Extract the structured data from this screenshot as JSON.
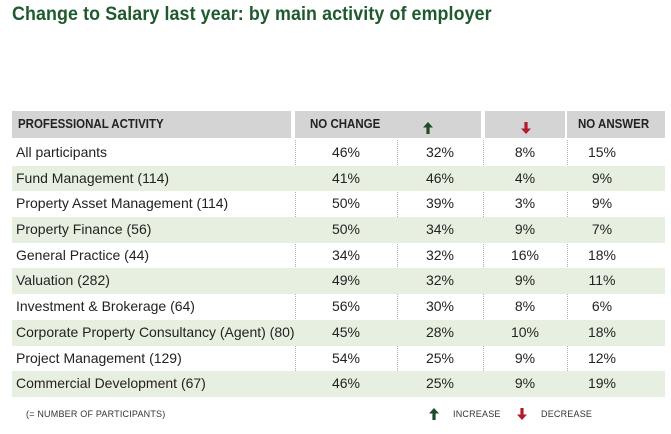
{
  "title": "Change to Salary last year: by main activity of employer",
  "colors": {
    "title": "#1f5a2e",
    "header_bg": "#d4d4d4",
    "row_shade": "#e7f0e0",
    "increase": "#1b4d2a",
    "decrease": "#b01c2e"
  },
  "header": {
    "activity": "PROFESSIONAL ACTIVITY",
    "no_change": "NO CHANGE",
    "increase_icon": "arrow-up-icon",
    "decrease_icon": "arrow-down-icon",
    "no_answer": "NO ANSWER"
  },
  "rows": [
    {
      "activity": "All participants",
      "no_change": "46%",
      "increase": "32%",
      "decrease": "8%",
      "no_answer": "15%"
    },
    {
      "activity": "Fund Management (114)",
      "no_change": "41%",
      "increase": "46%",
      "decrease": "4%",
      "no_answer": "9%"
    },
    {
      "activity": "Property Asset Management (114)",
      "no_change": "50%",
      "increase": "39%",
      "decrease": "3%",
      "no_answer": "9%"
    },
    {
      "activity": "Property Finance (56)",
      "no_change": "50%",
      "increase": "34%",
      "decrease": "9%",
      "no_answer": "7%"
    },
    {
      "activity": "General Practice (44)",
      "no_change": "34%",
      "increase": "32%",
      "decrease": "16%",
      "no_answer": "18%"
    },
    {
      "activity": "Valuation (282)",
      "no_change": "49%",
      "increase": "32%",
      "decrease": "9%",
      "no_answer": "11%"
    },
    {
      "activity": "Investment & Brokerage (64)",
      "no_change": "56%",
      "increase": "30%",
      "decrease": "8%",
      "no_answer": "6%"
    },
    {
      "activity": "Corporate Property Consultancy (Agent) (80)",
      "no_change": "45%",
      "increase": "28%",
      "decrease": "10%",
      "no_answer": "18%"
    },
    {
      "activity": "Project Management (129)",
      "no_change": "54%",
      "increase": "25%",
      "decrease": "9%",
      "no_answer": "12%"
    },
    {
      "activity": "Commercial Development (67)",
      "no_change": "46%",
      "increase": "25%",
      "decrease": "9%",
      "no_answer": "19%"
    }
  ],
  "footer": {
    "note": "(= NUMBER OF PARTICIPANTS)",
    "increase_label": "INCREASE",
    "decrease_label": "DECREASE"
  }
}
